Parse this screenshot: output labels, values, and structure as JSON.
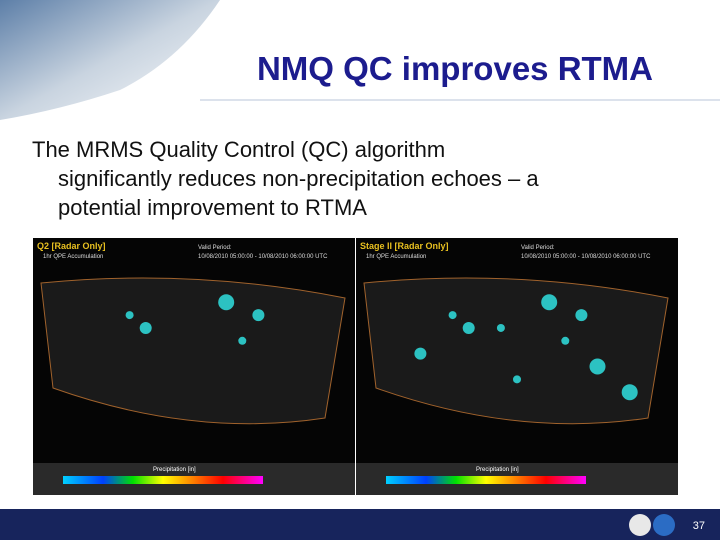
{
  "slide": {
    "title": "NMQ QC improves RTMA",
    "body": [
      "The MRMS Quality Control (QC) algorithm",
      "significantly reduces non-precipitation echoes – a",
      "potential improvement to RTMA"
    ],
    "panels": [
      {
        "name": "Q2 [Radar Only]",
        "product": "1hr QPE Accumulation",
        "valid_label": "Valid Period:",
        "valid": "10/08/2010 05:00:00 - 10/08/2010 06:00:00 UTC",
        "legend_title": "Precipitation [in]"
      },
      {
        "name": "Stage II [Radar Only]",
        "product": "1hr QPE Accumulation",
        "valid_label": "Valid Period:",
        "valid": "10/08/2010 05:00:00 - 10/08/2010 06:00:00 UTC",
        "legend_title": "Precipitation [in]"
      }
    ],
    "page_number": "37"
  }
}
